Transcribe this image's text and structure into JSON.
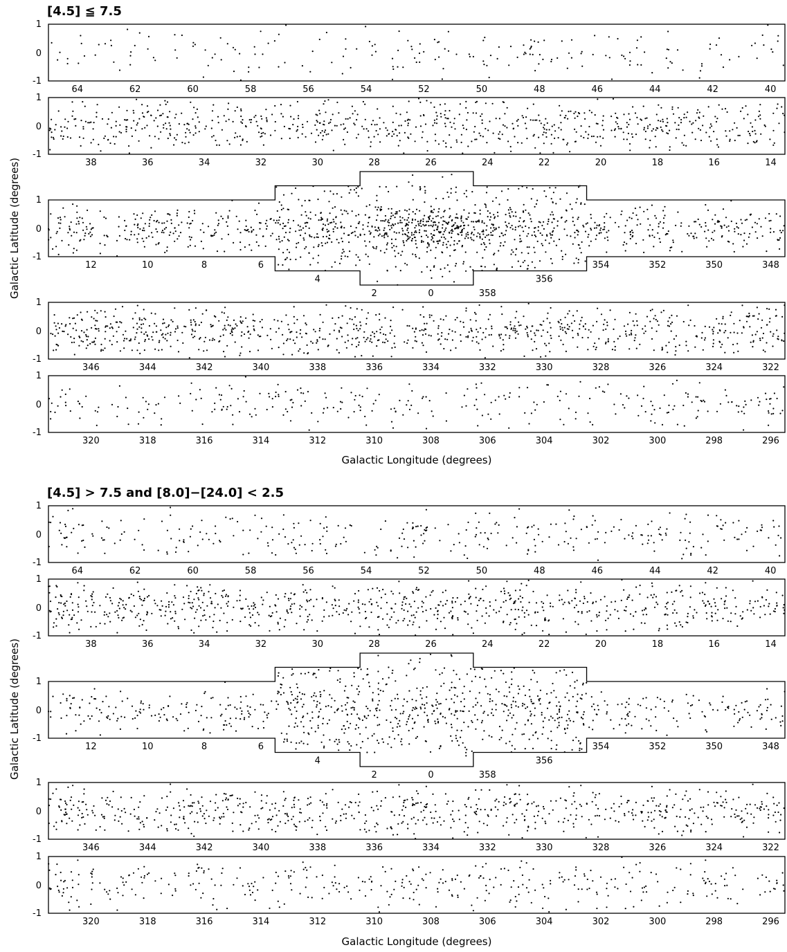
{
  "chart_data": [
    {
      "type": "scatter",
      "title": "[4.5] ≦ 7.5",
      "xlabel": "Galactic Longitude (degrees)",
      "ylabel": "Galactic Latitude (degrees)",
      "ylim": [
        -1,
        1
      ],
      "y_ticks": [
        "1",
        "0",
        "-1"
      ],
      "strips": [
        {
          "xlim": [
            65,
            39.5
          ],
          "ticks": [
            "64",
            "62",
            "60",
            "58",
            "56",
            "54",
            "52",
            "50",
            "48",
            "46",
            "44",
            "42",
            "40"
          ]
        },
        {
          "xlim": [
            39.5,
            13.5
          ],
          "ticks": [
            "38",
            "36",
            "34",
            "32",
            "30",
            "28",
            "26",
            "24",
            "22",
            "20",
            "18",
            "16",
            "14"
          ]
        },
        {
          "xlim": [
            13.5,
            -12.5
          ],
          "ticks": [
            "12",
            "10",
            "8",
            "6",
            "4",
            "2",
            "0",
            "358",
            "356",
            "354",
            "352",
            "350",
            "348"
          ]
        },
        {
          "xlim": [
            347.5,
            321.5
          ],
          "ticks": [
            "346",
            "344",
            "342",
            "340",
            "338",
            "336",
            "334",
            "332",
            "330",
            "328",
            "326",
            "324",
            "322"
          ]
        },
        {
          "xlim": [
            321.5,
            295.5
          ],
          "ticks": [
            "320",
            "318",
            "316",
            "314",
            "312",
            "310",
            "308",
            "306",
            "304",
            "302",
            "300",
            "298",
            "296"
          ]
        }
      ],
      "center_extension": {
        "inner_l": [
          5.5,
          -5.5
        ],
        "inner_b": [
          -1.5,
          1.5
        ],
        "outer_l": [
          2.5,
          -1.5
        ],
        "outer_b": [
          -2.0,
          2.0
        ]
      },
      "point_density": {
        "description": "approximate points per strip",
        "counts": [
          200,
          750,
          1350,
          850,
          300
        ]
      },
      "grid": false
    },
    {
      "type": "scatter",
      "title": "[4.5] > 7.5 and [8.0]−[24.0] < 2.5",
      "xlabel": "Galactic Longitude (degrees)",
      "ylabel": "Galactic Latitude (degrees)",
      "ylim": [
        -1,
        1
      ],
      "y_ticks": [
        "1",
        "0",
        "-1"
      ],
      "strips": [
        {
          "xlim": [
            65,
            39.5
          ],
          "ticks": [
            "64",
            "62",
            "60",
            "58",
            "56",
            "54",
            "52",
            "50",
            "48",
            "46",
            "44",
            "42",
            "40"
          ]
        },
        {
          "xlim": [
            39.5,
            13.5
          ],
          "ticks": [
            "38",
            "36",
            "34",
            "32",
            "30",
            "28",
            "26",
            "24",
            "22",
            "20",
            "18",
            "16",
            "14"
          ]
        },
        {
          "xlim": [
            13.5,
            -12.5
          ],
          "ticks": [
            "12",
            "10",
            "8",
            "6",
            "4",
            "2",
            "0",
            "358",
            "356",
            "354",
            "352",
            "350",
            "348"
          ]
        },
        {
          "xlim": [
            347.5,
            321.5
          ],
          "ticks": [
            "346",
            "344",
            "342",
            "340",
            "338",
            "336",
            "334",
            "332",
            "330",
            "328",
            "326",
            "324",
            "322"
          ]
        },
        {
          "xlim": [
            321.5,
            295.5
          ],
          "ticks": [
            "320",
            "318",
            "316",
            "314",
            "312",
            "310",
            "308",
            "306",
            "304",
            "302",
            "300",
            "298",
            "296"
          ]
        }
      ],
      "center_extension": {
        "inner_l": [
          5.5,
          -5.5
        ],
        "inner_b": [
          -1.5,
          1.5
        ],
        "outer_l": [
          2.5,
          -1.5
        ],
        "outer_b": [
          -2.0,
          2.0
        ]
      },
      "point_density": {
        "description": "approximate points per strip",
        "counts": [
          330,
          800,
          900,
          700,
          380
        ]
      },
      "grid": false
    }
  ]
}
